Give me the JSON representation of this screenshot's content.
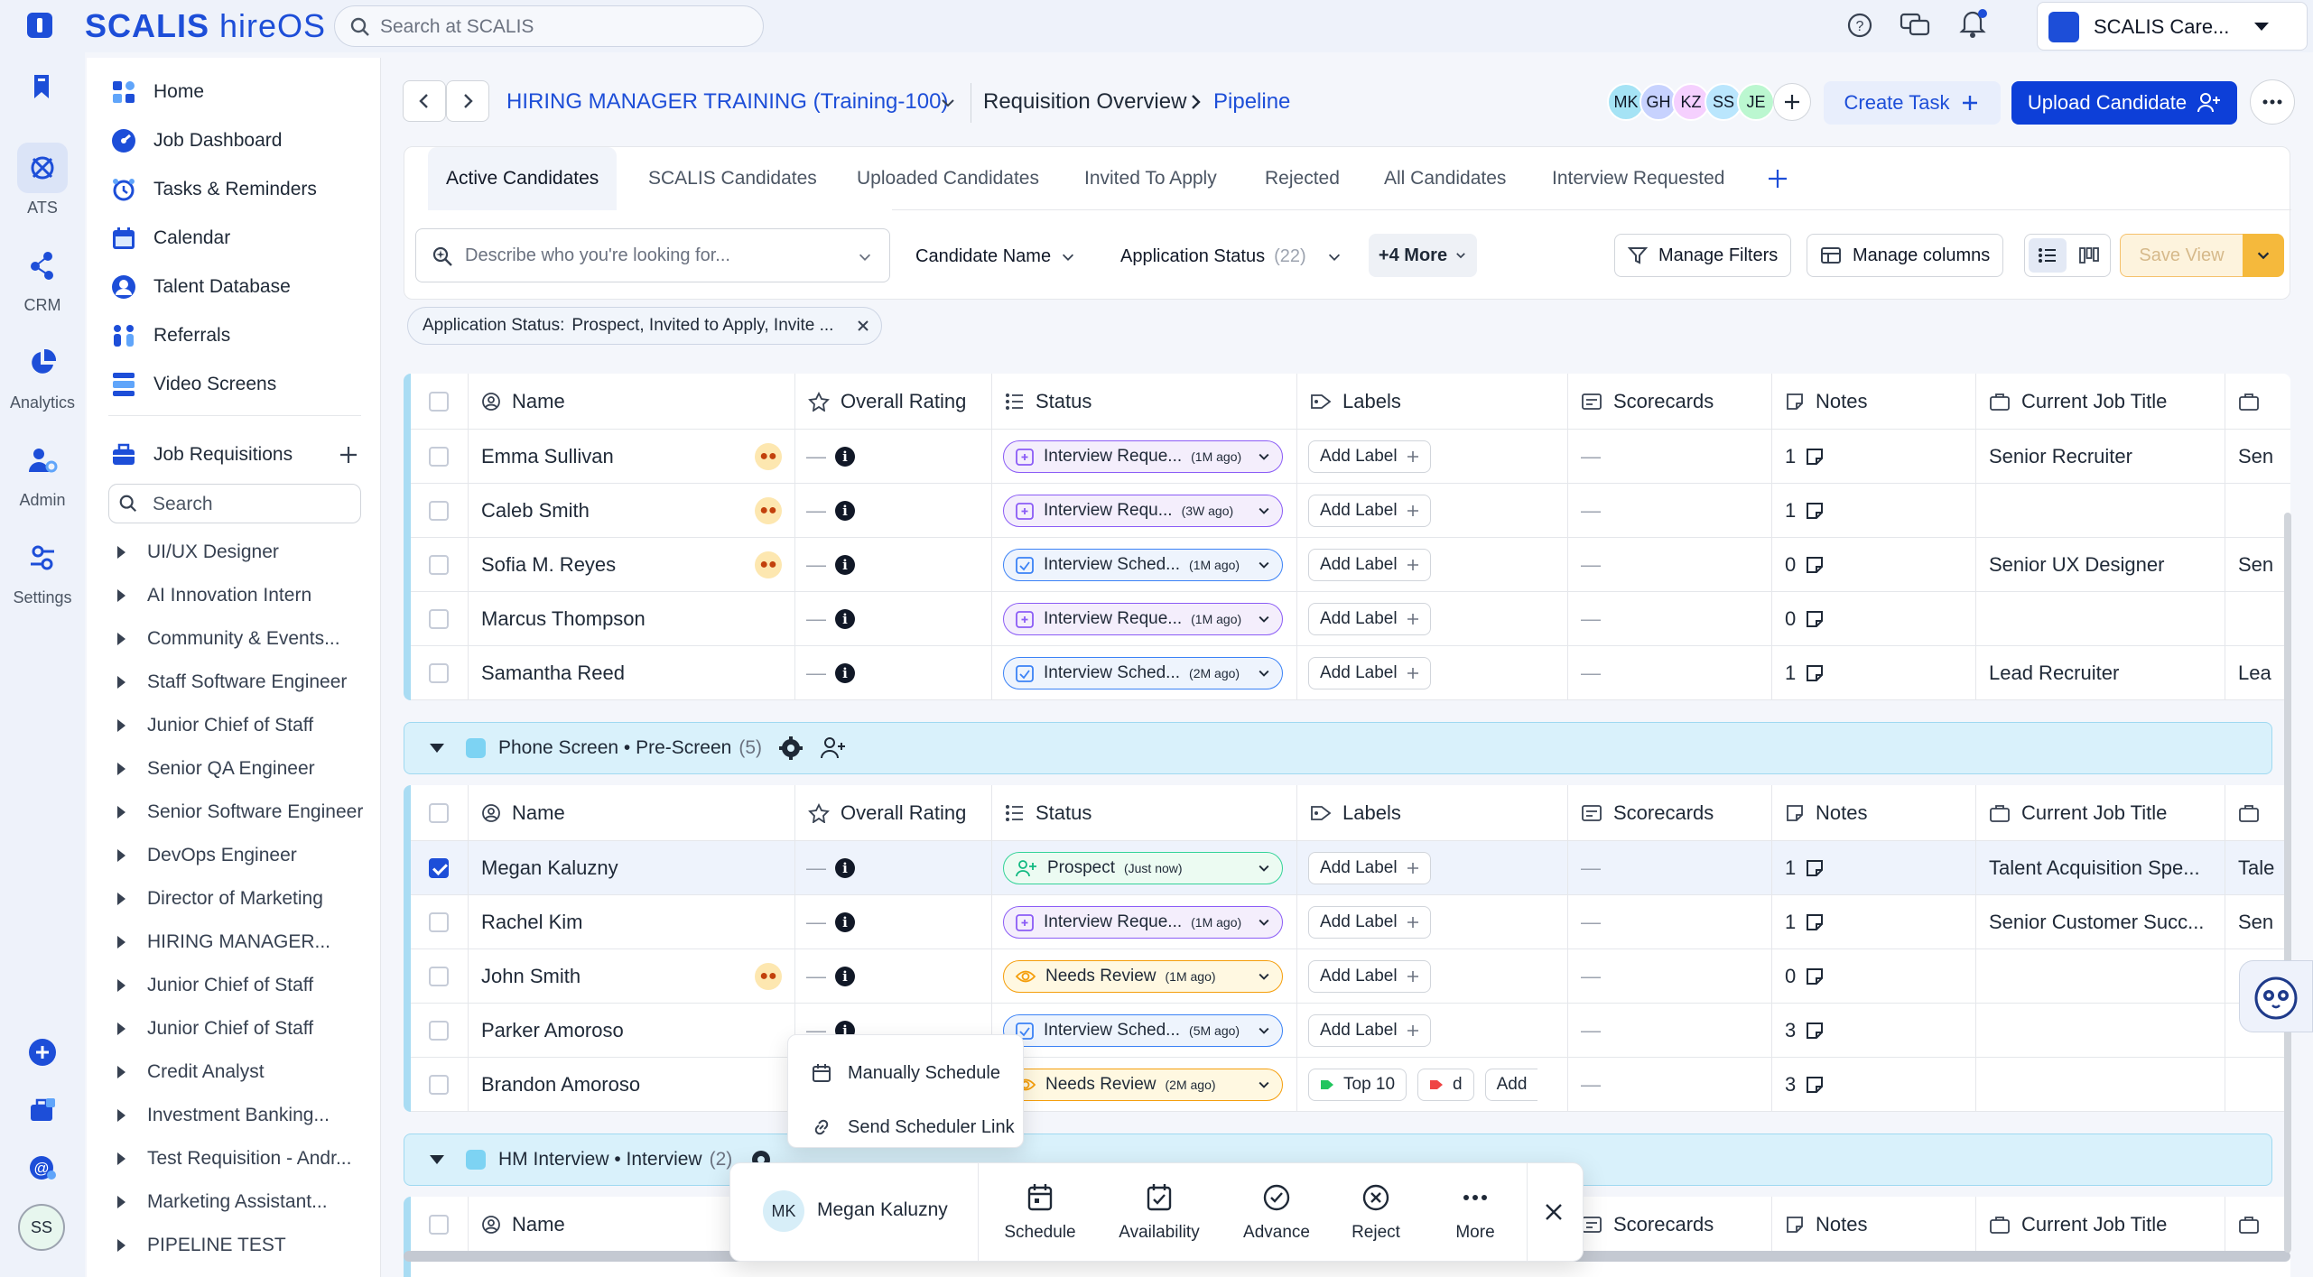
{
  "brand": {
    "logo_main": "SCALIS",
    "logo_sub": " hireOS"
  },
  "topbar": {
    "search_placeholder": "Search at SCALIS",
    "org_name": "SCALIS Care..."
  },
  "rail": [
    {
      "label": "ATS",
      "active": true
    },
    {
      "label": "CRM"
    },
    {
      "label": "Analytics"
    },
    {
      "label": "Admin"
    },
    {
      "label": "Settings"
    }
  ],
  "user_initials": "SS",
  "nav": {
    "items": [
      "Home",
      "Job Dashboard",
      "Tasks & Reminders",
      "Calendar",
      "Talent Database",
      "Referrals",
      "Video Screens"
    ],
    "job_requisitions": "Job Requisitions",
    "search_placeholder": "Search",
    "requisitions": [
      "UI/UX Designer",
      "AI Innovation Intern",
      "Community & Events...",
      "Staff Software Engineer",
      "Junior Chief of Staff",
      "Senior QA Engineer",
      "Senior Software Engineer",
      "DevOps Engineer",
      "Director of Marketing",
      "HIRING MANAGER...",
      "Junior Chief of Staff",
      "Junior Chief of Staff",
      "Credit Analyst",
      "Investment Banking...",
      "Test Requisition - Andr...",
      "Marketing Assistant...",
      "PIPELINE TEST"
    ]
  },
  "header": {
    "req_title": "HIRING MANAGER TRAINING (Training-100)",
    "crumb_overview": "Requisition Overview",
    "crumb_current": "Pipeline",
    "avatars": [
      {
        "initials": "MK",
        "color": "#a5e3f5"
      },
      {
        "initials": "GH",
        "color": "#c7d2fe"
      },
      {
        "initials": "KZ",
        "color": "#f5d0fe"
      },
      {
        "initials": "SS",
        "color": "#bae6fd"
      },
      {
        "initials": "JE",
        "color": "#bbf7d0"
      }
    ],
    "create_task": "Create Task",
    "upload_candidate": "Upload Candidate"
  },
  "tabs": [
    "Active Candidates",
    "SCALIS Candidates",
    "Uploaded Candidates",
    "Invited To Apply",
    "Rejected",
    "All Candidates",
    "Interview Requested"
  ],
  "filters": {
    "describe_placeholder": "Describe who you're looking for...",
    "candidate_name": "Candidate Name",
    "application_status": "Application Status",
    "application_status_count": "(22)",
    "more": "+4 More",
    "manage_filters": "Manage Filters",
    "manage_columns": "Manage columns",
    "save_view": "Save View",
    "chip_label": "Application Status:",
    "chip_value": "Prospect, Invited to Apply, Invite ..."
  },
  "columns": [
    "Name",
    "Overall Rating",
    "Status",
    "Labels",
    "Scorecards",
    "Notes",
    "Current Job Title"
  ],
  "add_label": "Add Label",
  "group1_rows": [
    {
      "name": "Emma Sullivan",
      "owl": true,
      "status": "Interview Reque...",
      "ago": "(1M ago)",
      "style": "purple",
      "notes": "1",
      "title": "Senior Recruiter",
      "extra": "Sen"
    },
    {
      "name": "Caleb Smith",
      "owl": true,
      "status": "Interview Requ...",
      "ago": "(3W ago)",
      "style": "purple",
      "notes": "1",
      "title": "",
      "extra": ""
    },
    {
      "name": "Sofia M. Reyes",
      "owl": true,
      "status": "Interview Sched...",
      "ago": "(1M ago)",
      "style": "blue",
      "notes": "0",
      "title": "Senior UX Designer",
      "extra": "Sen"
    },
    {
      "name": "Marcus Thompson",
      "owl": false,
      "status": "Interview Reque...",
      "ago": "(1M ago)",
      "style": "purple",
      "notes": "0",
      "title": "",
      "extra": ""
    },
    {
      "name": "Samantha Reed",
      "owl": false,
      "status": "Interview Sched...",
      "ago": "(2M ago)",
      "style": "blue",
      "notes": "1",
      "title": "Lead Recruiter",
      "extra": "Lea"
    }
  ],
  "stage1": {
    "name": "Phone Screen • Pre-Screen",
    "count": "(5)"
  },
  "group2_rows": [
    {
      "name": "Megan Kaluzny",
      "checked": true,
      "owl": false,
      "status": "Prospect",
      "ago": "(Just now)",
      "style": "green",
      "notes": "1",
      "title": "Talent Acquisition Spe...",
      "extra": "Tale"
    },
    {
      "name": "Rachel Kim",
      "owl": false,
      "status": "Interview Reque...",
      "ago": "(1M ago)",
      "style": "purple",
      "notes": "1",
      "title": "Senior Customer Succ...",
      "extra": "Sen"
    },
    {
      "name": "John Smith",
      "owl": true,
      "status": "Needs Review",
      "ago": "(1M ago)",
      "style": "yellow",
      "notes": "0",
      "title": "",
      "extra": ""
    },
    {
      "name": "Parker Amoroso",
      "owl": false,
      "status": "Interview Sched...",
      "ago": "(5M ago)",
      "style": "blue",
      "notes": "3",
      "title": "",
      "extra": ""
    },
    {
      "name": "Brandon Amoroso",
      "owl": false,
      "status": "Needs Review",
      "ago": "(2M ago)",
      "style": "yellow",
      "notes": "3",
      "title": "",
      "extra": "",
      "labels": [
        "Top 10",
        "d"
      ],
      "add_trunc": "Add"
    }
  ],
  "stage2": {
    "name": "HM Interview • Interview",
    "count": "(2)"
  },
  "popup_menu": [
    "Manually Schedule",
    "Send Scheduler Link"
  ],
  "action_bar": {
    "initials": "MK",
    "name": "Megan Kaluzny",
    "actions": [
      "Schedule",
      "Availability",
      "Advance",
      "Reject",
      "More"
    ]
  },
  "colors": {
    "brand_blue": "#1d4ed8",
    "stage_bg": "#d9f1fb"
  }
}
